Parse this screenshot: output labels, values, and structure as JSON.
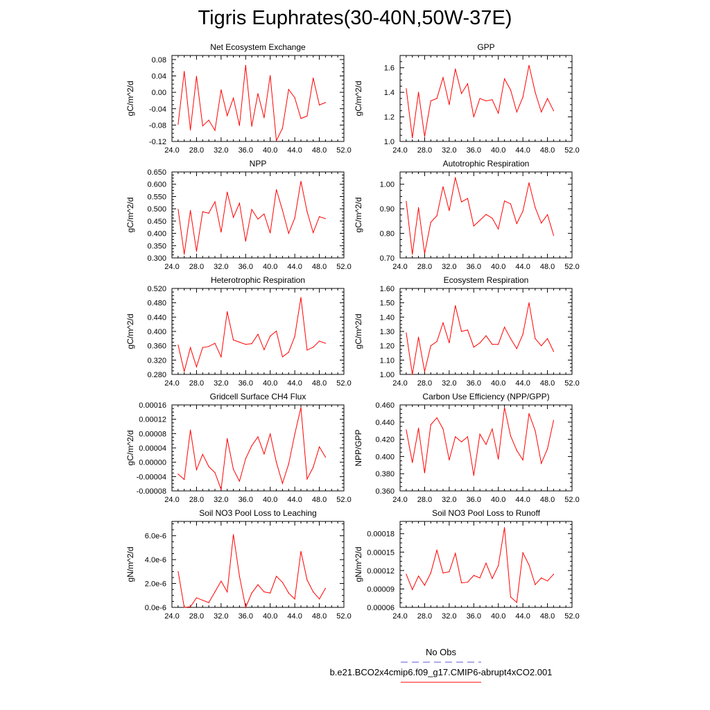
{
  "figure_title": "Tigris Euphrates(30-40N,50W-37E)",
  "colors": {
    "model_line": "#ff0000",
    "obs_line": "#5a5ad6",
    "axis": "#000000"
  },
  "legend": {
    "obs_label": "No Obs",
    "model_label": "b.e21.BCO2x4cmip6.f09_g17.CMIP6-abrupt4xCO2.001"
  },
  "chart_data": [
    {
      "type": "line",
      "title": "Net Ecosystem Exchange",
      "ylabel": "gC/m^2/d",
      "xlim": [
        24,
        52
      ],
      "ylim": [
        -0.12,
        0.09
      ],
      "xticks": [
        "24.0",
        "28.0",
        "32.0",
        "36.0",
        "40.0",
        "44.0",
        "48.0",
        "52.0"
      ],
      "yticks": [
        {
          "v": -0.12,
          "l": "-0.12"
        },
        {
          "v": -0.08,
          "l": "-0.08"
        },
        {
          "v": -0.04,
          "l": "-0.04"
        },
        {
          "v": 0,
          "l": "0.00"
        },
        {
          "v": 0.04,
          "l": "0.04"
        },
        {
          "v": 0.08,
          "l": "0.08"
        }
      ],
      "x": [
        25,
        26,
        27,
        28,
        29,
        30,
        31,
        32,
        33,
        34,
        35,
        36,
        37,
        38,
        39,
        40,
        41,
        42,
        43,
        44,
        45,
        46,
        47,
        48,
        49
      ],
      "y": [
        -0.078,
        0.051,
        -0.092,
        0.039,
        -0.082,
        -0.068,
        -0.093,
        0.006,
        -0.057,
        -0.014,
        -0.081,
        0.066,
        -0.083,
        -0.003,
        -0.062,
        0.041,
        -0.118,
        -0.088,
        0.007,
        -0.013,
        -0.064,
        -0.058,
        0.035,
        -0.031,
        -0.025
      ]
    },
    {
      "type": "line",
      "title": "GPP",
      "ylabel": "gC/m^2/d",
      "xlim": [
        24,
        52
      ],
      "ylim": [
        1.0,
        1.7
      ],
      "xticks": [
        "24.0",
        "28.0",
        "32.0",
        "36.0",
        "40.0",
        "44.0",
        "48.0",
        "52.0"
      ],
      "yticks": [
        {
          "v": 1.0,
          "l": "1.0"
        },
        {
          "v": 1.2,
          "l": "1.2"
        },
        {
          "v": 1.4,
          "l": "1.4"
        },
        {
          "v": 1.6,
          "l": "1.6"
        }
      ],
      "x": [
        25,
        26,
        27,
        28,
        29,
        30,
        31,
        32,
        33,
        34,
        35,
        36,
        37,
        38,
        39,
        40,
        41,
        42,
        43,
        44,
        45,
        46,
        47,
        48,
        49
      ],
      "y": [
        1.43,
        1.03,
        1.4,
        1.04,
        1.33,
        1.35,
        1.52,
        1.3,
        1.59,
        1.39,
        1.47,
        1.2,
        1.35,
        1.33,
        1.34,
        1.23,
        1.51,
        1.42,
        1.24,
        1.36,
        1.62,
        1.4,
        1.24,
        1.35,
        1.25
      ]
    },
    {
      "type": "line",
      "title": "NPP",
      "ylabel": "gC/m^2/d",
      "xlim": [
        24,
        52
      ],
      "ylim": [
        0.3,
        0.65
      ],
      "xticks": [
        "24.0",
        "28.0",
        "32.0",
        "36.0",
        "40.0",
        "44.0",
        "48.0",
        "52.0"
      ],
      "yticks": [
        {
          "v": 0.3,
          "l": "0.300"
        },
        {
          "v": 0.35,
          "l": "0.350"
        },
        {
          "v": 0.4,
          "l": "0.400"
        },
        {
          "v": 0.45,
          "l": "0.450"
        },
        {
          "v": 0.5,
          "l": "0.500"
        },
        {
          "v": 0.55,
          "l": "0.550"
        },
        {
          "v": 0.6,
          "l": "0.600"
        },
        {
          "v": 0.65,
          "l": "0.650"
        }
      ],
      "x": [
        25,
        26,
        27,
        28,
        29,
        30,
        31,
        32,
        33,
        34,
        35,
        36,
        37,
        38,
        39,
        40,
        41,
        42,
        43,
        44,
        45,
        46,
        47,
        48,
        49
      ],
      "y": [
        0.498,
        0.315,
        0.493,
        0.327,
        0.488,
        0.482,
        0.529,
        0.405,
        0.568,
        0.465,
        0.523,
        0.368,
        0.497,
        0.458,
        0.479,
        0.402,
        0.578,
        0.494,
        0.4,
        0.462,
        0.612,
        0.489,
        0.403,
        0.468,
        0.46
      ]
    },
    {
      "type": "line",
      "title": "Autotrophic Respiration",
      "ylabel": "gC/m^2/d",
      "xlim": [
        24,
        52
      ],
      "ylim": [
        0.7,
        1.05
      ],
      "xticks": [
        "24.0",
        "28.0",
        "32.0",
        "36.0",
        "40.0",
        "44.0",
        "48.0",
        "52.0"
      ],
      "yticks": [
        {
          "v": 0.7,
          "l": "0.70"
        },
        {
          "v": 0.8,
          "l": "0.80"
        },
        {
          "v": 0.9,
          "l": "0.90"
        },
        {
          "v": 1.0,
          "l": "1.00"
        }
      ],
      "x": [
        25,
        26,
        27,
        28,
        29,
        30,
        31,
        32,
        33,
        34,
        35,
        36,
        37,
        38,
        39,
        40,
        41,
        42,
        43,
        44,
        45,
        46,
        47,
        48,
        49
      ],
      "y": [
        0.93,
        0.715,
        0.905,
        0.718,
        0.845,
        0.872,
        0.99,
        0.893,
        1.027,
        0.928,
        0.942,
        0.83,
        0.853,
        0.877,
        0.862,
        0.818,
        0.932,
        0.92,
        0.84,
        0.89,
        1.006,
        0.905,
        0.842,
        0.876,
        0.792
      ]
    },
    {
      "type": "line",
      "title": "Heterotrophic Respiration",
      "ylabel": "gC/m^2/d",
      "xlim": [
        24,
        52
      ],
      "ylim": [
        0.28,
        0.52
      ],
      "xticks": [
        "24.0",
        "28.0",
        "32.0",
        "36.0",
        "40.0",
        "44.0",
        "48.0",
        "52.0"
      ],
      "yticks": [
        {
          "v": 0.28,
          "l": "0.280"
        },
        {
          "v": 0.32,
          "l": "0.320"
        },
        {
          "v": 0.36,
          "l": "0.360"
        },
        {
          "v": 0.4,
          "l": "0.400"
        },
        {
          "v": 0.44,
          "l": "0.440"
        },
        {
          "v": 0.48,
          "l": "0.480"
        },
        {
          "v": 0.52,
          "l": "0.520"
        }
      ],
      "x": [
        25,
        26,
        27,
        28,
        29,
        30,
        31,
        32,
        33,
        34,
        35,
        36,
        37,
        38,
        39,
        40,
        41,
        42,
        43,
        44,
        45,
        46,
        47,
        48,
        49
      ],
      "y": [
        0.362,
        0.288,
        0.355,
        0.301,
        0.355,
        0.358,
        0.367,
        0.329,
        0.455,
        0.376,
        0.37,
        0.364,
        0.366,
        0.392,
        0.349,
        0.387,
        0.401,
        0.329,
        0.342,
        0.386,
        0.495,
        0.348,
        0.356,
        0.373,
        0.367
      ]
    },
    {
      "type": "line",
      "title": "Ecosystem Respiration",
      "ylabel": "gC/m^2/d",
      "xlim": [
        24,
        52
      ],
      "ylim": [
        1.0,
        1.6
      ],
      "xticks": [
        "24.0",
        "28.0",
        "32.0",
        "36.0",
        "40.0",
        "44.0",
        "48.0",
        "52.0"
      ],
      "yticks": [
        {
          "v": 1.0,
          "l": "1.00"
        },
        {
          "v": 1.1,
          "l": "1.10"
        },
        {
          "v": 1.2,
          "l": "1.20"
        },
        {
          "v": 1.3,
          "l": "1.30"
        },
        {
          "v": 1.4,
          "l": "1.40"
        },
        {
          "v": 1.5,
          "l": "1.50"
        },
        {
          "v": 1.6,
          "l": "1.60"
        }
      ],
      "x": [
        25,
        26,
        27,
        28,
        29,
        30,
        31,
        32,
        33,
        34,
        35,
        36,
        37,
        38,
        39,
        40,
        41,
        42,
        43,
        44,
        45,
        46,
        47,
        48,
        49
      ],
      "y": [
        1.29,
        1.0,
        1.26,
        1.02,
        1.2,
        1.23,
        1.36,
        1.22,
        1.48,
        1.3,
        1.31,
        1.19,
        1.22,
        1.27,
        1.21,
        1.21,
        1.33,
        1.25,
        1.18,
        1.28,
        1.5,
        1.25,
        1.2,
        1.25,
        1.16
      ]
    },
    {
      "type": "line",
      "title": "Gridcell Surface CH4 Flux",
      "ylabel": "gC/m^2/d",
      "xlim": [
        24,
        52
      ],
      "ylim": [
        -8e-05,
        0.00016
      ],
      "xticks": [
        "24.0",
        "28.0",
        "32.0",
        "36.0",
        "40.0",
        "44.0",
        "48.0",
        "52.0"
      ],
      "yticks": [
        {
          "v": -8e-05,
          "l": "-0.00008"
        },
        {
          "v": -4e-05,
          "l": "-0.00004"
        },
        {
          "v": 0,
          "l": "0.00000"
        },
        {
          "v": 4e-05,
          "l": "0.00004"
        },
        {
          "v": 8e-05,
          "l": "0.00008"
        },
        {
          "v": 0.00012,
          "l": "0.00012"
        },
        {
          "v": 0.00016,
          "l": "0.00016"
        }
      ],
      "x": [
        25,
        26,
        27,
        28,
        29,
        30,
        31,
        32,
        33,
        34,
        35,
        36,
        37,
        38,
        39,
        40,
        41,
        42,
        43,
        44,
        45,
        46,
        47,
        48,
        49
      ],
      "y": [
        -3.3e-05,
        -4.8e-05,
        9e-05,
        -2.1e-05,
        2.2e-05,
        -1.2e-05,
        -2.9e-05,
        -7.6e-05,
        6.6e-05,
        -2e-05,
        -5.3e-05,
        1e-05,
        4.6e-05,
        7.1e-05,
        2.3e-05,
        7.9e-05,
        0.0,
        -5.9e-05,
        -5e-06,
        7.8e-05,
        0.000153,
        -4.7e-05,
        -1.4e-05,
        4.3e-05,
        1.4e-05
      ]
    },
    {
      "type": "line",
      "title": "Carbon Use Efficiency (NPP/GPP)",
      "ylabel": "NPP/GPP",
      "xlim": [
        24,
        52
      ],
      "ylim": [
        0.36,
        0.46
      ],
      "xticks": [
        "24.0",
        "28.0",
        "32.0",
        "36.0",
        "40.0",
        "44.0",
        "48.0",
        "52.0"
      ],
      "yticks": [
        {
          "v": 0.36,
          "l": "0.360"
        },
        {
          "v": 0.38,
          "l": "0.380"
        },
        {
          "v": 0.4,
          "l": "0.400"
        },
        {
          "v": 0.42,
          "l": "0.420"
        },
        {
          "v": 0.44,
          "l": "0.440"
        },
        {
          "v": 0.46,
          "l": "0.460"
        }
      ],
      "x": [
        25,
        26,
        27,
        28,
        29,
        30,
        31,
        32,
        33,
        34,
        35,
        36,
        37,
        38,
        39,
        40,
        41,
        42,
        43,
        44,
        45,
        46,
        47,
        48,
        49
      ],
      "y": [
        0.431,
        0.393,
        0.433,
        0.381,
        0.437,
        0.445,
        0.432,
        0.396,
        0.423,
        0.417,
        0.423,
        0.378,
        0.426,
        0.414,
        0.432,
        0.397,
        0.457,
        0.424,
        0.407,
        0.396,
        0.45,
        0.43,
        0.392,
        0.409,
        0.442
      ]
    },
    {
      "type": "line",
      "title": "Soil NO3 Pool Loss to Leaching",
      "ylabel": "gN/m^2/d",
      "xlim": [
        24,
        52
      ],
      "ylim": [
        0,
        7.2e-06
      ],
      "xticks": [
        "24.0",
        "28.0",
        "32.0",
        "36.0",
        "40.0",
        "44.0",
        "48.0",
        "52.0"
      ],
      "yticks": [
        {
          "v": 0,
          "l": "0.0e-6"
        },
        {
          "v": 2e-06,
          "l": "2.0e-6"
        },
        {
          "v": 4e-06,
          "l": "4.0e-6"
        },
        {
          "v": 6e-06,
          "l": "6.0e-6"
        }
      ],
      "x": [
        25,
        26,
        27,
        28,
        29,
        30,
        31,
        32,
        33,
        34,
        35,
        36,
        37,
        38,
        39,
        40,
        41,
        42,
        43,
        44,
        45,
        46,
        47,
        48,
        49
      ],
      "y": [
        3e-06,
        0.0,
        5e-08,
        8e-07,
        6e-07,
        4e-07,
        1.3e-06,
        2.2e-06,
        1.3e-06,
        6.1e-06,
        2.6e-06,
        0.0,
        1.2e-06,
        1.9e-06,
        1.3e-06,
        1.2e-06,
        2.6e-06,
        2.1e-06,
        1.2e-06,
        7e-07,
        4.7e-06,
        2.3e-06,
        1.3e-06,
        7e-07,
        1.6e-06
      ]
    },
    {
      "type": "line",
      "title": "Soil NO3 Pool Loss to Runoff",
      "ylabel": "gN/m^2/d",
      "xlim": [
        24,
        52
      ],
      "ylim": [
        6e-05,
        0.0002
      ],
      "xticks": [
        "24.0",
        "28.0",
        "32.0",
        "36.0",
        "40.0",
        "44.0",
        "48.0",
        "52.0"
      ],
      "yticks": [
        {
          "v": 6e-05,
          "l": "0.00006"
        },
        {
          "v": 9e-05,
          "l": "0.00009"
        },
        {
          "v": 0.00012,
          "l": "0.00012"
        },
        {
          "v": 0.00015,
          "l": "0.00015"
        },
        {
          "v": 0.00018,
          "l": "0.00018"
        }
      ],
      "x": [
        25,
        26,
        27,
        28,
        29,
        30,
        31,
        32,
        33,
        34,
        35,
        36,
        37,
        38,
        39,
        40,
        41,
        42,
        43,
        44,
        45,
        46,
        47,
        48,
        49
      ],
      "y": [
        0.000114,
        8.9e-05,
        0.000111,
        9.6e-05,
        0.000116,
        0.000153,
        0.000116,
        0.000118,
        0.000148,
        0.0001,
        0.000101,
        0.000112,
        0.000108,
        0.000132,
        0.000107,
        0.000128,
        0.00019,
        7.7e-05,
        6.8e-05,
        0.000149,
        0.000129,
        9.7e-05,
        0.000108,
        0.000103,
        0.000114
      ]
    }
  ]
}
